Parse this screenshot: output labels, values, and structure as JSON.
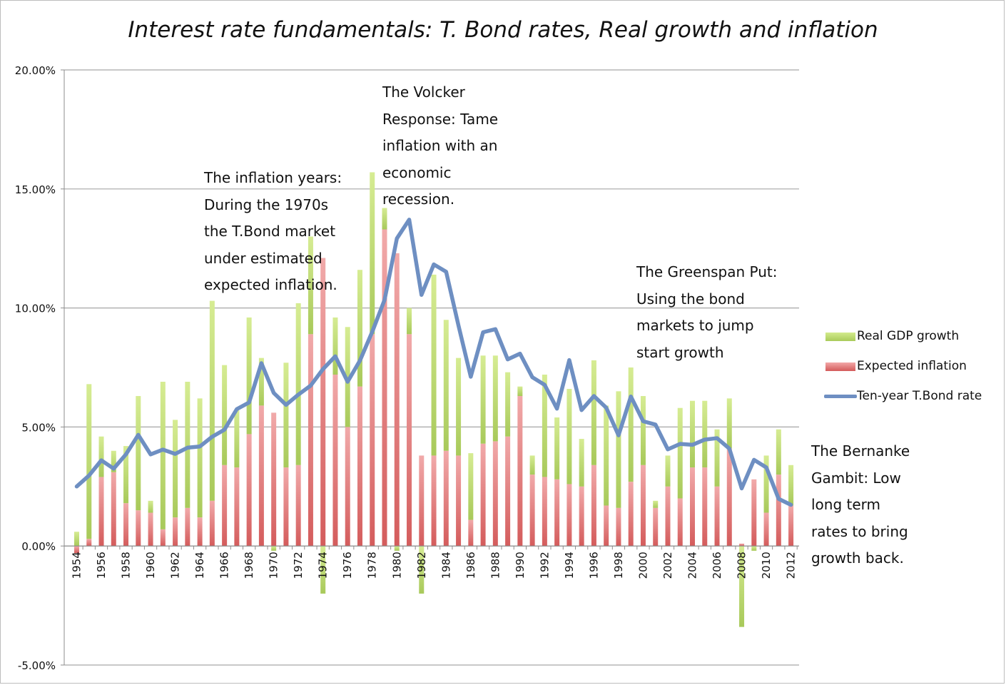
{
  "chart_data": {
    "type": "bar",
    "title": "Interest rate fundamentals: T. Bond rates, Real growth and inflation",
    "ylim": [
      -5,
      20
    ],
    "y_ticks": [
      "20.00%",
      "15.00%",
      "10.00%",
      "5.00%",
      "0.00%",
      "-5.00%"
    ],
    "y_tick_values": [
      20,
      15,
      10,
      5,
      0,
      -5
    ],
    "grid": true,
    "legend_position": "right",
    "x": [
      1954,
      1955,
      1956,
      1957,
      1958,
      1959,
      1960,
      1961,
      1962,
      1963,
      1964,
      1965,
      1966,
      1967,
      1968,
      1969,
      1970,
      1971,
      1972,
      1973,
      1974,
      1975,
      1976,
      1977,
      1978,
      1979,
      1980,
      1981,
      1982,
      1983,
      1984,
      1985,
      1986,
      1987,
      1988,
      1989,
      1990,
      1991,
      1992,
      1993,
      1994,
      1995,
      1996,
      1997,
      1998,
      1999,
      2000,
      2001,
      2002,
      2003,
      2004,
      2005,
      2006,
      2007,
      2008,
      2009,
      2010,
      2011,
      2012
    ],
    "x_tick_labels": [
      "1954",
      "1956",
      "1958",
      "1960",
      "1962",
      "1964",
      "1966",
      "1968",
      "1970",
      "1972",
      "1974",
      "1976",
      "1978",
      "1980",
      "1982",
      "1984",
      "1986",
      "1988",
      "1990",
      "1992",
      "1994",
      "1996",
      "1998",
      "2000",
      "2002",
      "2004",
      "2006",
      "2008",
      "2010",
      "2012"
    ],
    "series": [
      {
        "name": "Expected inflation",
        "kind": "bar",
        "color": "#e06666",
        "values": [
          -0.3,
          0.3,
          2.9,
          3.1,
          1.8,
          1.5,
          1.4,
          0.7,
          1.2,
          1.6,
          1.2,
          1.9,
          3.4,
          3.3,
          4.7,
          5.9,
          5.6,
          3.3,
          3.4,
          8.9,
          12.1,
          7.2,
          5.0,
          6.7,
          8.9,
          13.3,
          12.3,
          8.9,
          3.8,
          3.8,
          4.0,
          3.8,
          1.1,
          4.3,
          4.4,
          4.6,
          6.3,
          3.0,
          2.9,
          2.8,
          2.6,
          2.5,
          3.4,
          1.7,
          1.6,
          2.7,
          3.4,
          1.6,
          2.5,
          2.0,
          3.3,
          3.3,
          2.5,
          4.1,
          0.1,
          2.8,
          1.4,
          3.0,
          1.7
        ]
      },
      {
        "name": "Real GDP growth",
        "kind": "bar",
        "color": "#b9d86a",
        "values": [
          0.6,
          6.5,
          1.7,
          0.9,
          2.4,
          4.8,
          0.5,
          6.2,
          4.1,
          5.3,
          5.0,
          8.4,
          4.2,
          2.4,
          4.9,
          2.0,
          -0.2,
          4.4,
          6.8,
          4.1,
          -2.0,
          2.4,
          4.2,
          4.9,
          6.8,
          0.9,
          -0.2,
          1.1,
          -2.0,
          7.6,
          5.5,
          4.1,
          2.8,
          3.7,
          3.6,
          2.7,
          0.4,
          0.8,
          4.3,
          2.6,
          4.0,
          2.0,
          4.4,
          4.2,
          4.9,
          4.8,
          2.9,
          0.3,
          1.3,
          3.8,
          2.8,
          2.8,
          2.4,
          2.1,
          -3.4,
          -0.2,
          2.4,
          1.9,
          1.7
        ]
      },
      {
        "name": "Ten-year T.Bond rate",
        "kind": "line",
        "color": "#6e8fc2",
        "values": [
          2.5,
          2.96,
          3.6,
          3.25,
          3.85,
          4.67,
          3.85,
          4.05,
          3.87,
          4.13,
          4.18,
          4.59,
          4.89,
          5.75,
          6.03,
          7.68,
          6.43,
          5.93,
          6.36,
          6.74,
          7.43,
          7.97,
          6.9,
          7.79,
          9.0,
          10.34,
          12.92,
          13.71,
          10.55,
          11.83,
          11.52,
          9.27,
          7.11,
          8.98,
          9.11,
          7.84,
          8.08,
          7.09,
          6.77,
          5.77,
          7.81,
          5.71,
          6.3,
          5.81,
          4.65,
          6.28,
          5.24,
          5.1,
          4.06,
          4.29,
          4.25,
          4.47,
          4.53,
          4.09,
          2.42,
          3.62,
          3.3,
          1.98,
          1.73
        ]
      }
    ],
    "annotations": [
      "The inflation years:\nDuring the 1970s\nthe T.Bond market\nunder estimated\nexpected inflation.",
      "The Volcker\nResponse: Tame\ninflation with an\neconomic\nrecession.",
      "The Greenspan Put:\nUsing the bond\nmarkets to jump\nstart growth",
      "The Bernanke\nGambit: Low\nlong term\nrates to bring\ngrowth back."
    ]
  }
}
